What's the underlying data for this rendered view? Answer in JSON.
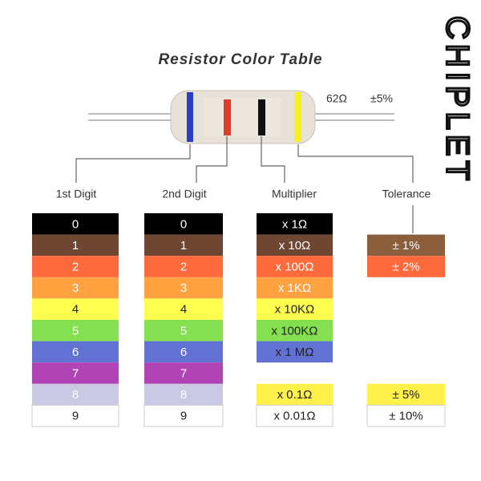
{
  "title": "Resistor Color Table",
  "resistor": {
    "value": "62Ω",
    "tolerance": "±5%"
  },
  "headers": [
    "1st Digit",
    "2nd Digit",
    "Multiplier",
    "Tolerance"
  ],
  "rows": [
    {
      "digit": 0,
      "color": "#000000",
      "ink": "#ffffff",
      "multiplier": {
        "text": "x 1Ω",
        "color": "#000000",
        "ink": "#ffffff"
      },
      "tolerance": null
    },
    {
      "digit": 1,
      "color": "#6e4632",
      "ink": "#ffffff",
      "multiplier": {
        "text": "x 10Ω",
        "color": "#6e4632",
        "ink": "#ffffff"
      },
      "tolerance": {
        "text": "± 1%",
        "color": "#8b5e3c",
        "ink": "#ffffff"
      }
    },
    {
      "digit": 2,
      "color": "#ff6a3d",
      "ink": "#ffffff",
      "multiplier": {
        "text": "x 100Ω",
        "color": "#ff6a3d",
        "ink": "#ffffff"
      },
      "tolerance": {
        "text": "± 2%",
        "color": "#ff6a3d",
        "ink": "#ffffff"
      }
    },
    {
      "digit": 3,
      "color": "#ffa23f",
      "ink": "#ffffff",
      "multiplier": {
        "text": "x 1KΩ",
        "color": "#ffa23f",
        "ink": "#ffffff"
      },
      "tolerance": null
    },
    {
      "digit": 4,
      "color": "#ffff50",
      "ink": "#222222",
      "multiplier": {
        "text": "x 10KΩ",
        "color": "#ffff50",
        "ink": "#222222"
      },
      "tolerance": null
    },
    {
      "digit": 5,
      "color": "#84e050",
      "ink": "#ffffff",
      "multiplier": {
        "text": "x 100KΩ",
        "color": "#84e050",
        "ink": "#222222"
      },
      "tolerance": null
    },
    {
      "digit": 6,
      "color": "#6272d2",
      "ink": "#ffffff",
      "multiplier": {
        "text": "x 1 MΩ",
        "color": "#6272d2",
        "ink": "#222222"
      },
      "tolerance": null
    },
    {
      "digit": 7,
      "color": "#b044b4",
      "ink": "#ffffff",
      "multiplier": null,
      "tolerance": null
    },
    {
      "digit": 8,
      "color": "#c9c9e4",
      "ink": "#ffffff",
      "multiplier": {
        "text": "x 0.1Ω",
        "color": "#fff04a",
        "ink": "#222222"
      },
      "tolerance": {
        "text": "± 5%",
        "color": "#fff04a",
        "ink": "#222222"
      }
    },
    {
      "digit": 9,
      "color": "#ffffff",
      "ink": "#222222",
      "multiplier": {
        "text": "x 0.01Ω",
        "color": "#ffffff",
        "ink": "#222222"
      },
      "tolerance": {
        "text": "± 10%",
        "color": "#ffffff",
        "ink": "#222222"
      }
    }
  ],
  "logo": "CHIPLET"
}
